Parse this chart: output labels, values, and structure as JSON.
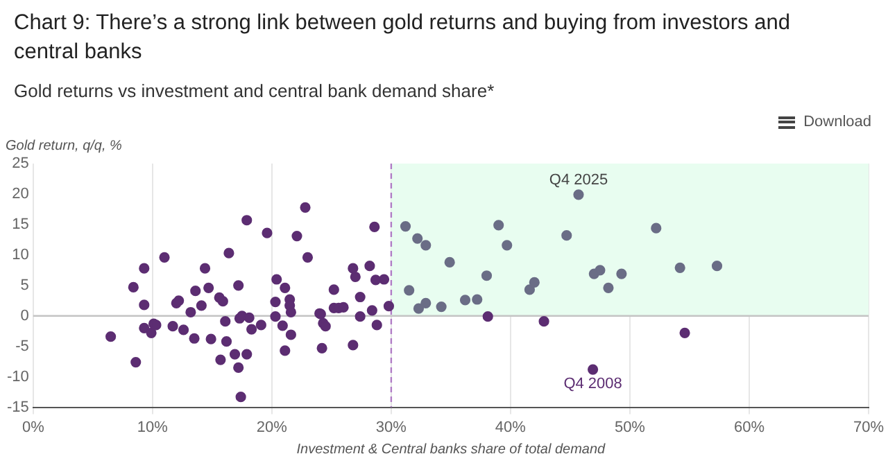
{
  "chart_data": {
    "type": "scatter",
    "title": "Chart 9: There’s a strong link between gold returns and buying from investors and central banks",
    "subtitle": "Gold returns vs investment and central bank demand share*",
    "xlabel": "Investment & Central banks share of total demand",
    "ylabel": "Gold return, q/q, %",
    "series": [
      {
        "color": "#5c2d72",
        "x": [
          6.5,
          8.4,
          8.6,
          9.3,
          9.3,
          9.3,
          9.9,
          10.1,
          10.3,
          11.0,
          11.7,
          12.0,
          12.2,
          12.6,
          13.2,
          13.5,
          13.6,
          14.1,
          14.4,
          14.7,
          14.9,
          15.6,
          15.7,
          15.9,
          16.1,
          16.2,
          16.4,
          16.9,
          17.2,
          17.2,
          17.3,
          17.4,
          17.5,
          17.9,
          17.9,
          18.1,
          18.3,
          19.1,
          19.6,
          20.3,
          20.3,
          20.4,
          20.9,
          21.1,
          21.1,
          21.5,
          21.5,
          21.6,
          21.6,
          22.1,
          22.8,
          23.0,
          24.0,
          24.1,
          24.2,
          24.3,
          24.5,
          25.2,
          25.2,
          25.6,
          26.0,
          26.8,
          26.8,
          27.0,
          27.4,
          27.4,
          28.2,
          28.4,
          28.6,
          28.7,
          28.8,
          29.4,
          29.8,
          38.1,
          42.8,
          46.9,
          54.6
        ],
        "values": [
          -3.4,
          4.7,
          -7.6,
          7.8,
          1.8,
          -2.0,
          -2.8,
          -1.3,
          -1.5,
          9.6,
          -1.7,
          2.1,
          2.5,
          -2.3,
          0.6,
          -3.7,
          4.1,
          1.7,
          7.8,
          4.6,
          -3.8,
          3.0,
          -7.2,
          2.4,
          -0.9,
          -4.2,
          10.3,
          -6.3,
          5.0,
          -8.5,
          -0.4,
          -13.3,
          0.0,
          15.7,
          -6.3,
          -0.3,
          -2.2,
          -1.5,
          13.6,
          -0.1,
          2.3,
          6.0,
          -1.6,
          -5.7,
          4.6,
          2.7,
          1.7,
          0.6,
          -3.1,
          13.1,
          17.8,
          9.6,
          0.4,
          0.3,
          -5.3,
          -1.2,
          -1.7,
          4.3,
          1.3,
          1.3,
          1.4,
          7.8,
          -4.8,
          6.4,
          3.1,
          -0.1,
          8.2,
          0.9,
          14.6,
          5.9,
          -1.5,
          6.0,
          1.6,
          -0.1,
          -0.9,
          -8.8,
          -2.8
        ]
      },
      {
        "color": "#6a6d86",
        "x": [
          31.2,
          32.2,
          32.9,
          31.5,
          32.3,
          32.9,
          34.2,
          34.9,
          36.2,
          37.2,
          38.0,
          38.4,
          39.0,
          39.7,
          41.6,
          42.0,
          44.7,
          45.7,
          47.0,
          47.5,
          48.2,
          49.3,
          52.2,
          54.2,
          57.3
        ],
        "values": [
          14.7,
          12.7,
          11.6,
          4.2,
          1.2,
          2.1,
          1.5,
          8.8,
          2.6,
          2.7,
          6.6,
          null,
          14.9,
          11.6,
          4.3,
          5.5,
          13.2,
          19.9,
          6.9,
          7.5,
          4.6,
          6.9,
          14.4,
          7.9,
          8.2
        ]
      }
    ],
    "annotations": [
      {
        "text": "Q4 2025",
        "x": 45.7,
        "y": 19.9
      },
      {
        "text": "Q4 2008",
        "x": 46.9,
        "y": -8.8
      },
      "Download"
    ],
    "bands": [
      {
        "axis": "x",
        "from": 30,
        "to": 70,
        "color": "#e8fdf0"
      }
    ],
    "ref_lines": [
      {
        "axis": "x",
        "value": 30,
        "color": "#b07cc6",
        "line_style": "dashed"
      },
      {
        "axis": "y",
        "value": 0,
        "color": "#c4c4c4"
      }
    ],
    "xlim": [
      0,
      70
    ],
    "xticks": [
      {
        "value": 0,
        "label": "0%"
      },
      {
        "value": 10,
        "label": "10%"
      },
      {
        "value": 20,
        "label": "20%"
      },
      {
        "value": 30,
        "label": "30%"
      },
      {
        "value": 40,
        "label": "40%"
      },
      {
        "value": 50,
        "label": "50%"
      },
      {
        "value": 60,
        "label": "60%"
      },
      {
        "value": 70,
        "label": "70%"
      }
    ],
    "ylim": [
      -15,
      25
    ],
    "yticks": [
      -15,
      -10,
      -5,
      0,
      5,
      10,
      15,
      20,
      25
    ],
    "grid": "x",
    "legend": false,
    "marker": "circle"
  }
}
